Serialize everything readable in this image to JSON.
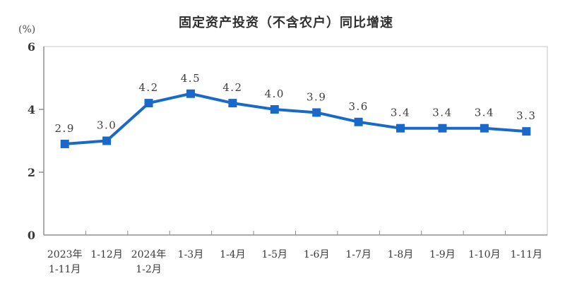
{
  "chart": {
    "title": "固定资产投资（不含农户）同比增速",
    "unit_label": "(%)"
  },
  "chart_data": {
    "type": "line",
    "title": "固定资产投资（不含农户）同比增速",
    "ylabel": "(%)",
    "xlabel": "",
    "categories": [
      [
        "2023年",
        "1-11月"
      ],
      [
        "1-12月"
      ],
      [
        "2024年",
        "1-2月"
      ],
      [
        "1-3月"
      ],
      [
        "1-4月"
      ],
      [
        "1-5月"
      ],
      [
        "1-6月"
      ],
      [
        "1-7月"
      ],
      [
        "1-8月"
      ],
      [
        "1-9月"
      ],
      [
        "1-10月"
      ],
      [
        "1-11月"
      ]
    ],
    "values": [
      2.9,
      3.0,
      4.2,
      4.5,
      4.2,
      4.0,
      3.9,
      3.6,
      3.4,
      3.4,
      3.4,
      3.3
    ],
    "value_labels": [
      "2.9",
      "3.0",
      "4.2",
      "4.5",
      "4.2",
      "4.0",
      "3.9",
      "3.6",
      "3.4",
      "3.4",
      "3.4",
      "3.3"
    ],
    "ylim": [
      0,
      6
    ],
    "y_ticks": [
      0,
      2,
      4,
      6
    ],
    "grid": false,
    "legend": false,
    "marker": "square",
    "line_color": "#1869C9",
    "border_color": "#c6c6c6",
    "axis_color": "#8f8f8f"
  }
}
